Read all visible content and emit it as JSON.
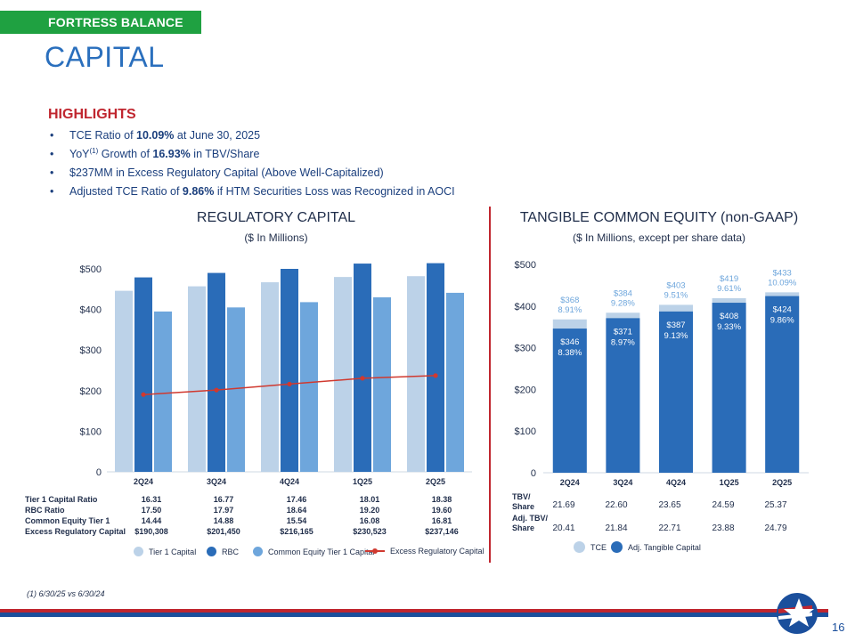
{
  "header": {
    "section_tag": "FORTRESS BALANCE SHEET",
    "title": "CAPITAL"
  },
  "highlights": {
    "heading": "HIGHLIGHTS",
    "items": [
      {
        "pre": "TCE Ratio of ",
        "bold": "10.09%",
        "post": " at June 30, 2025"
      },
      {
        "pre": "YoY",
        "sup": "(1)",
        "mid": " Growth of ",
        "bold": "16.93%",
        "post": " in TBV/Share"
      },
      {
        "pre": "$237MM in Excess Regulatory Capital (Above Well-Capitalized)"
      },
      {
        "pre": "Adjusted TCE Ratio of ",
        "bold": "9.86%",
        "post": " if HTM Securities Loss was Recognized in AOCI"
      }
    ]
  },
  "regulatory": {
    "title": "REGULATORY CAPITAL",
    "subtitle": "($ In Millions)",
    "table_labels": [
      "Tier 1 Capital Ratio",
      "RBC Ratio",
      "Common Equity Tier 1",
      "Excess Regulatory Capital"
    ],
    "table": [
      [
        "16.31",
        "16.77",
        "17.46",
        "18.01",
        "18.38"
      ],
      [
        "17.50",
        "17.97",
        "18.64",
        "19.20",
        "19.60"
      ],
      [
        "14.44",
        "14.88",
        "15.54",
        "16.08",
        "16.81"
      ],
      [
        "$190,308",
        "$201,450",
        "$216,165",
        "$230,523",
        "$237,146"
      ]
    ],
    "legend": [
      "Tier 1 Capital",
      "RBC",
      "Common Equity Tier 1 Capital",
      "Excess Regulatory Capital"
    ]
  },
  "tce": {
    "title": "TANGIBLE COMMON EQUITY (non-GAAP)",
    "subtitle": "($ In Millions, except per share data)",
    "row_labels": [
      "TBV/\nShare",
      "Adj. TBV/\nShare"
    ],
    "row_label_lines": [
      [
        "TBV/",
        "Share"
      ],
      [
        "Adj. TBV/",
        "Share"
      ]
    ],
    "tbv": [
      "21.69",
      "22.60",
      "23.65",
      "24.59",
      "25.37"
    ],
    "adj_tbv": [
      "20.41",
      "21.84",
      "22.71",
      "23.88",
      "24.79"
    ],
    "legend": [
      "TCE",
      "Adj. Tangible Capital"
    ]
  },
  "colors": {
    "tier1": "#bcd2e8",
    "rbc": "#2a6cb8",
    "cet1": "#6ea6dc",
    "excess_line": "#d0392f",
    "tce": "#bcd2e8",
    "adj": "#2a6cb8",
    "tce_label": "#6ea6dc"
  },
  "chart_data": [
    {
      "type": "bar",
      "title": "REGULATORY CAPITAL",
      "subtitle": "($ In Millions)",
      "categories": [
        "2Q24",
        "3Q24",
        "4Q24",
        "1Q25",
        "2Q25"
      ],
      "ylim": [
        0,
        500
      ],
      "yticks": [
        0,
        100,
        200,
        300,
        400,
        500
      ],
      "ytick_labels": [
        "0",
        "$100",
        "$200",
        "$300",
        "$400",
        "$500"
      ],
      "series": [
        {
          "name": "Tier 1 Capital",
          "type": "bar",
          "values": [
            446,
            457,
            467,
            480,
            482
          ]
        },
        {
          "name": "RBC",
          "type": "bar",
          "values": [
            479,
            490,
            500,
            513,
            514
          ]
        },
        {
          "name": "Common Equity Tier 1 Capital",
          "type": "bar",
          "values": [
            395,
            405,
            418,
            430,
            441
          ]
        },
        {
          "name": "Excess Regulatory Capital",
          "type": "line",
          "values": [
            190.308,
            201.45,
            216.165,
            230.523,
            237.146
          ]
        }
      ],
      "legend_position": "bottom"
    },
    {
      "type": "bar",
      "title": "TANGIBLE COMMON EQUITY (non-GAAP)",
      "subtitle": "($ In Millions, except per share data)",
      "categories": [
        "2Q24",
        "3Q24",
        "4Q24",
        "1Q25",
        "2Q25"
      ],
      "ylim": [
        0,
        500
      ],
      "yticks": [
        0,
        100,
        200,
        300,
        400,
        500
      ],
      "ytick_labels": [
        "0",
        "$100",
        "$200",
        "$300",
        "$400",
        "$500"
      ],
      "series": [
        {
          "name": "TCE",
          "values": [
            368,
            384,
            403,
            419,
            433
          ],
          "labels": [
            "$368",
            "$384",
            "$403",
            "$419",
            "$433"
          ],
          "ratios": [
            "8.91%",
            "9.28%",
            "9.51%",
            "9.61%",
            "10.09%"
          ]
        },
        {
          "name": "Adj. Tangible Capital",
          "values": [
            346,
            371,
            387,
            408,
            424
          ],
          "labels": [
            "$346",
            "$371",
            "$387",
            "$408",
            "$424"
          ],
          "ratios": [
            "8.38%",
            "8.97%",
            "9.13%",
            "9.33%",
            "9.86%"
          ]
        }
      ],
      "legend_position": "bottom"
    }
  ],
  "footer": {
    "footnote": "(1) 6/30/25 vs 6/30/24",
    "page_number": "16"
  }
}
